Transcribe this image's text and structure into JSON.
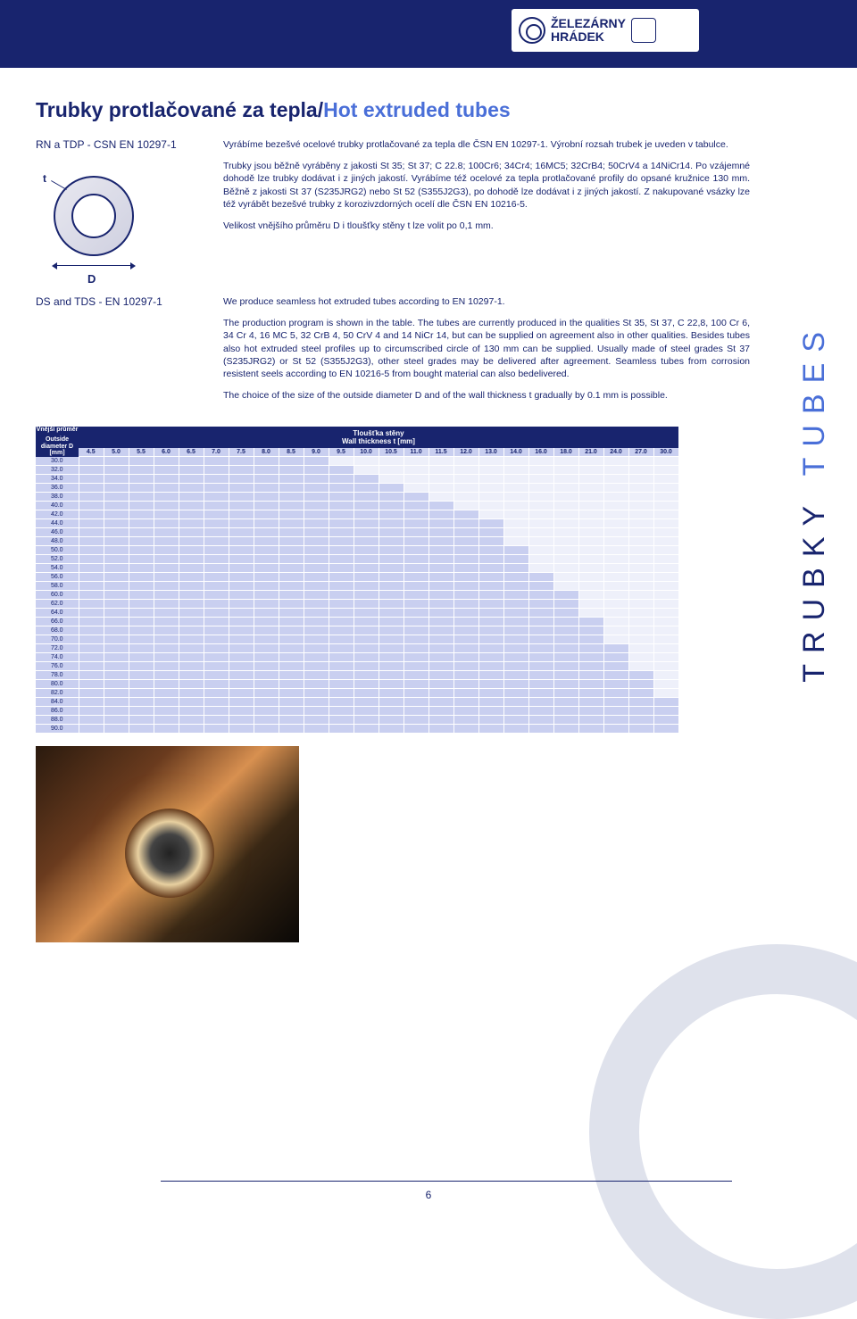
{
  "brand": {
    "line1": "ŽELEZÁRNY",
    "line2": "HRÁDEK"
  },
  "title": {
    "cz": "Trubky protlačované za tepla/",
    "en": "Hot extruded tubes"
  },
  "codes": {
    "top": "RN a TDP - CSN EN 10297-1",
    "bottom": "DS and TDS - EN 10297-1"
  },
  "sidetext": {
    "main": "TRUBKY",
    "sub": "TUBES"
  },
  "diagram": {
    "t": "t",
    "D": "D"
  },
  "para_cz_1": "Vyrábíme bezešvé ocelové trubky protlačované za tepla dle ČSN EN 10297-1. Výrobní rozsah trubek je uveden v tabulce.",
  "para_cz_2": "Trubky jsou běžně vyráběny z jakosti St 35; St 37; C 22.8; 100Cr6; 34Cr4; 16MC5; 32CrB4; 50CrV4 a 14NiCr14. Po vzájemné dohodě lze trubky dodávat i z jiných jakostí. Vyrábíme též ocelové za tepla protlačované profily do opsané kružnice 130 mm. Běžně z jakosti St 37 (S235JRG2) nebo St 52 (S355J2G3), po dohodě lze dodávat i z jiných jakostí. Z nakupované vsázky lze též vyrábět bezešvé trubky z korozivzdorných ocelí dle ČSN EN 10216-5.",
  "para_cz_3": "Velikost vnějšího průměru D i tloušťky stěny t lze volit po 0,1 mm.",
  "para_en_1": "We produce seamless hot extruded tubes according to EN 10297-1.",
  "para_en_2": "The production program is shown in the table. The tubes are currently produced in the qualities St 35, St 37, C 22,8, 100 Cr 6, 34 Cr 4, 16 MC 5, 32 CrB 4, 50 CrV 4 and 14 NiCr 14, but can be supplied on agreement also in other qualities. Besides tubes also hot extruded steel profiles up to circumscribed circle of 130 mm can be supplied. Usually made of steel grades St 37 (S235JRG2) or St 52 (S355J2G3), other steel grades may be delivered after agreement. Seamless tubes from corrosion resistent seels according to EN 10216-5 from bought material can also bedelivered.",
  "para_en_3": "The choice of the size of the outside diameter D and of the wall thickness t gradually by 0.1 mm is possible.",
  "table": {
    "header_left_cz": "Vnější průměr",
    "header_left_en": "Outside diameter D [mm]",
    "header_top_cz": "Tloušťka stěny",
    "header_top_en": "Wall thickness t [mm]",
    "thicknesses": [
      "4.5",
      "5.0",
      "5.5",
      "6.0",
      "6.5",
      "7.0",
      "7.5",
      "8.0",
      "8.5",
      "9.0",
      "9.5",
      "10.0",
      "10.5",
      "11.0",
      "11.5",
      "12.0",
      "13.0",
      "14.0",
      "16.0",
      "18.0",
      "21.0",
      "24.0",
      "27.0",
      "30.0"
    ],
    "diameters": [
      "30.0",
      "32.0",
      "34.0",
      "36.0",
      "38.0",
      "40.0",
      "42.0",
      "44.0",
      "46.0",
      "48.0",
      "50.0",
      "52.0",
      "54.0",
      "56.0",
      "58.0",
      "60.0",
      "62.0",
      "64.0",
      "66.0",
      "68.0",
      "70.0",
      "72.0",
      "74.0",
      "76.0",
      "78.0",
      "80.0",
      "82.0",
      "84.0",
      "86.0",
      "88.0",
      "90.0"
    ],
    "avail_start_idx": [
      0,
      0,
      0,
      0,
      0,
      0,
      0,
      0,
      0,
      0,
      0,
      0,
      0,
      0,
      0,
      0,
      0,
      0,
      0,
      0,
      0,
      0,
      0,
      0,
      0,
      0,
      0,
      0,
      0,
      0,
      0
    ],
    "avail_end_idx": [
      9,
      10,
      11,
      12,
      13,
      14,
      15,
      16,
      16,
      16,
      17,
      17,
      17,
      18,
      18,
      19,
      19,
      19,
      20,
      20,
      20,
      21,
      21,
      21,
      22,
      22,
      22,
      23,
      23,
      23,
      23
    ],
    "colors": {
      "on": "#c9cff0",
      "off": "#eef0fa",
      "header_bg": "#18246e",
      "header_fg": "#ffffff",
      "grid": "#ffffff",
      "text": "#18246e"
    }
  },
  "pagenum": "6"
}
